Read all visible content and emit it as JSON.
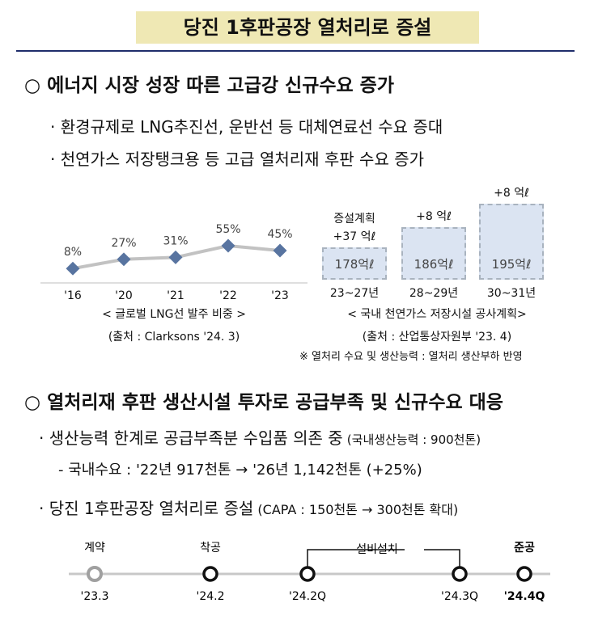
{
  "title": "당진 1후판공장 열처리로 증설",
  "section1": {
    "heading": "○ 에너지 시장 성장 따른 고급강 신규수요 증가",
    "bullet1": "· 환경규제로 LNG추진선, 운반선 등 대체연료선 수요 증대",
    "bullet2": "· 천연가스 저장탱크용 등 고급 열처리재 후판 수요 증가"
  },
  "chart_data": [
    {
      "type": "line",
      "title": "< 글로벌 LNG선 발주 비중 >",
      "source": "(출처 : Clarksons '24. 3)",
      "categories": [
        "'16",
        "'20",
        "'21",
        "'22",
        "'23"
      ],
      "values": [
        8,
        27,
        31,
        55,
        45
      ],
      "labels": [
        "8%",
        "27%",
        "31%",
        "55%",
        "45%"
      ],
      "ylim": [
        0,
        100
      ]
    },
    {
      "type": "bar",
      "title": "< 국내 천연가스 저장시설 공사계획>",
      "source": "(출처 : 산업통상자원부 '23. 4)",
      "note": "※ 열처리 수요 및 생산능력 : 열처리 생산부하 반영",
      "categories": [
        "23~27년",
        "28~29년",
        "30~31년"
      ],
      "values": [
        178,
        186,
        195
      ],
      "value_labels": [
        "178억ℓ",
        "186억ℓ",
        "195억ℓ"
      ],
      "top_annotations": [
        [
          "증설계획",
          "+37 억ℓ"
        ],
        [
          "+8 억ℓ"
        ],
        [
          "+8 억ℓ"
        ]
      ],
      "ylim": [
        0,
        200
      ]
    }
  ],
  "section2": {
    "heading": "○ 열처리재 후판 생산시설 투자로 공급부족 및 신규수요 대응",
    "bullet1_main": "· 생산능력 한계로 공급부족분 수입품 의존 중",
    "bullet1_note": "(국내생산능력 : 900천톤)",
    "sub": "- 국내수요 : '22년 917천톤 → '26년 1,142천톤 (+25%)",
    "bullet2_main": "· 당진 1후판공장 열처리로 증설",
    "bullet2_note": "(CAPA : 150천톤 → 300천톤 확대)"
  },
  "timeline": {
    "events": [
      {
        "label": "계약",
        "date": "'23.3"
      },
      {
        "label": "착공",
        "date": "'24.2"
      },
      {
        "label": "",
        "date": "'24.2Q"
      },
      {
        "label": "",
        "date": "'24.3Q"
      },
      {
        "label": "준공",
        "date": "'24.4Q"
      }
    ],
    "bracket_label": "설비설치"
  }
}
